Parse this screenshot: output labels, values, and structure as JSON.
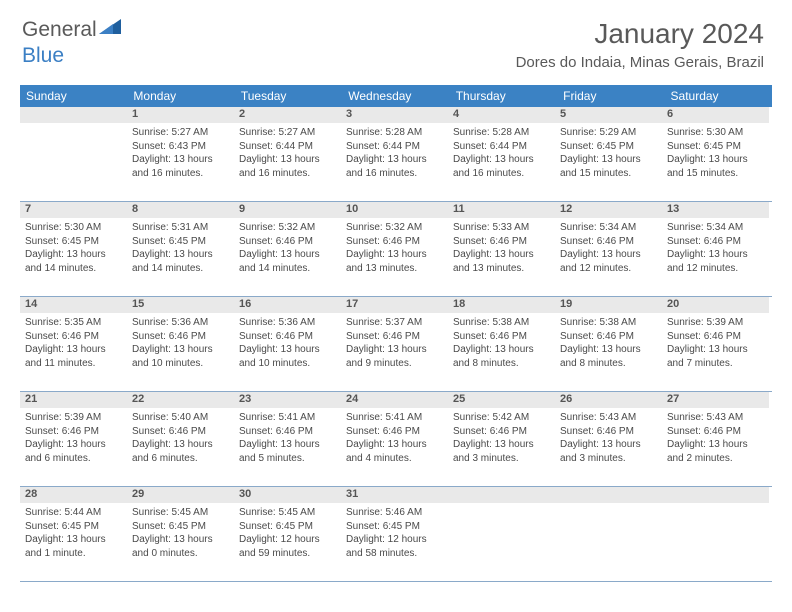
{
  "logo": {
    "text1": "General",
    "text2": "Blue"
  },
  "header": {
    "month_title": "January 2024",
    "location": "Dores do Indaia, Minas Gerais, Brazil"
  },
  "colors": {
    "header_bg": "#3b82c4",
    "row_divider": "#8aa9c9",
    "daynum_bg": "#e9e9e9",
    "text": "#4a4a4a",
    "logo_blue": "#3b7fc4"
  },
  "weekdays": [
    "Sunday",
    "Monday",
    "Tuesday",
    "Wednesday",
    "Thursday",
    "Friday",
    "Saturday"
  ],
  "weeks": [
    [
      {
        "num": "",
        "lines": []
      },
      {
        "num": "1",
        "lines": [
          "Sunrise: 5:27 AM",
          "Sunset: 6:43 PM",
          "Daylight: 13 hours and 16 minutes."
        ]
      },
      {
        "num": "2",
        "lines": [
          "Sunrise: 5:27 AM",
          "Sunset: 6:44 PM",
          "Daylight: 13 hours and 16 minutes."
        ]
      },
      {
        "num": "3",
        "lines": [
          "Sunrise: 5:28 AM",
          "Sunset: 6:44 PM",
          "Daylight: 13 hours and 16 minutes."
        ]
      },
      {
        "num": "4",
        "lines": [
          "Sunrise: 5:28 AM",
          "Sunset: 6:44 PM",
          "Daylight: 13 hours and 16 minutes."
        ]
      },
      {
        "num": "5",
        "lines": [
          "Sunrise: 5:29 AM",
          "Sunset: 6:45 PM",
          "Daylight: 13 hours and 15 minutes."
        ]
      },
      {
        "num": "6",
        "lines": [
          "Sunrise: 5:30 AM",
          "Sunset: 6:45 PM",
          "Daylight: 13 hours and 15 minutes."
        ]
      }
    ],
    [
      {
        "num": "7",
        "lines": [
          "Sunrise: 5:30 AM",
          "Sunset: 6:45 PM",
          "Daylight: 13 hours and 14 minutes."
        ]
      },
      {
        "num": "8",
        "lines": [
          "Sunrise: 5:31 AM",
          "Sunset: 6:45 PM",
          "Daylight: 13 hours and 14 minutes."
        ]
      },
      {
        "num": "9",
        "lines": [
          "Sunrise: 5:32 AM",
          "Sunset: 6:46 PM",
          "Daylight: 13 hours and 14 minutes."
        ]
      },
      {
        "num": "10",
        "lines": [
          "Sunrise: 5:32 AM",
          "Sunset: 6:46 PM",
          "Daylight: 13 hours and 13 minutes."
        ]
      },
      {
        "num": "11",
        "lines": [
          "Sunrise: 5:33 AM",
          "Sunset: 6:46 PM",
          "Daylight: 13 hours and 13 minutes."
        ]
      },
      {
        "num": "12",
        "lines": [
          "Sunrise: 5:34 AM",
          "Sunset: 6:46 PM",
          "Daylight: 13 hours and 12 minutes."
        ]
      },
      {
        "num": "13",
        "lines": [
          "Sunrise: 5:34 AM",
          "Sunset: 6:46 PM",
          "Daylight: 13 hours and 12 minutes."
        ]
      }
    ],
    [
      {
        "num": "14",
        "lines": [
          "Sunrise: 5:35 AM",
          "Sunset: 6:46 PM",
          "Daylight: 13 hours and 11 minutes."
        ]
      },
      {
        "num": "15",
        "lines": [
          "Sunrise: 5:36 AM",
          "Sunset: 6:46 PM",
          "Daylight: 13 hours and 10 minutes."
        ]
      },
      {
        "num": "16",
        "lines": [
          "Sunrise: 5:36 AM",
          "Sunset: 6:46 PM",
          "Daylight: 13 hours and 10 minutes."
        ]
      },
      {
        "num": "17",
        "lines": [
          "Sunrise: 5:37 AM",
          "Sunset: 6:46 PM",
          "Daylight: 13 hours and 9 minutes."
        ]
      },
      {
        "num": "18",
        "lines": [
          "Sunrise: 5:38 AM",
          "Sunset: 6:46 PM",
          "Daylight: 13 hours and 8 minutes."
        ]
      },
      {
        "num": "19",
        "lines": [
          "Sunrise: 5:38 AM",
          "Sunset: 6:46 PM",
          "Daylight: 13 hours and 8 minutes."
        ]
      },
      {
        "num": "20",
        "lines": [
          "Sunrise: 5:39 AM",
          "Sunset: 6:46 PM",
          "Daylight: 13 hours and 7 minutes."
        ]
      }
    ],
    [
      {
        "num": "21",
        "lines": [
          "Sunrise: 5:39 AM",
          "Sunset: 6:46 PM",
          "Daylight: 13 hours and 6 minutes."
        ]
      },
      {
        "num": "22",
        "lines": [
          "Sunrise: 5:40 AM",
          "Sunset: 6:46 PM",
          "Daylight: 13 hours and 6 minutes."
        ]
      },
      {
        "num": "23",
        "lines": [
          "Sunrise: 5:41 AM",
          "Sunset: 6:46 PM",
          "Daylight: 13 hours and 5 minutes."
        ]
      },
      {
        "num": "24",
        "lines": [
          "Sunrise: 5:41 AM",
          "Sunset: 6:46 PM",
          "Daylight: 13 hours and 4 minutes."
        ]
      },
      {
        "num": "25",
        "lines": [
          "Sunrise: 5:42 AM",
          "Sunset: 6:46 PM",
          "Daylight: 13 hours and 3 minutes."
        ]
      },
      {
        "num": "26",
        "lines": [
          "Sunrise: 5:43 AM",
          "Sunset: 6:46 PM",
          "Daylight: 13 hours and 3 minutes."
        ]
      },
      {
        "num": "27",
        "lines": [
          "Sunrise: 5:43 AM",
          "Sunset: 6:46 PM",
          "Daylight: 13 hours and 2 minutes."
        ]
      }
    ],
    [
      {
        "num": "28",
        "lines": [
          "Sunrise: 5:44 AM",
          "Sunset: 6:45 PM",
          "Daylight: 13 hours and 1 minute."
        ]
      },
      {
        "num": "29",
        "lines": [
          "Sunrise: 5:45 AM",
          "Sunset: 6:45 PM",
          "Daylight: 13 hours and 0 minutes."
        ]
      },
      {
        "num": "30",
        "lines": [
          "Sunrise: 5:45 AM",
          "Sunset: 6:45 PM",
          "Daylight: 12 hours and 59 minutes."
        ]
      },
      {
        "num": "31",
        "lines": [
          "Sunrise: 5:46 AM",
          "Sunset: 6:45 PM",
          "Daylight: 12 hours and 58 minutes."
        ]
      },
      {
        "num": "",
        "lines": []
      },
      {
        "num": "",
        "lines": []
      },
      {
        "num": "",
        "lines": []
      }
    ]
  ]
}
